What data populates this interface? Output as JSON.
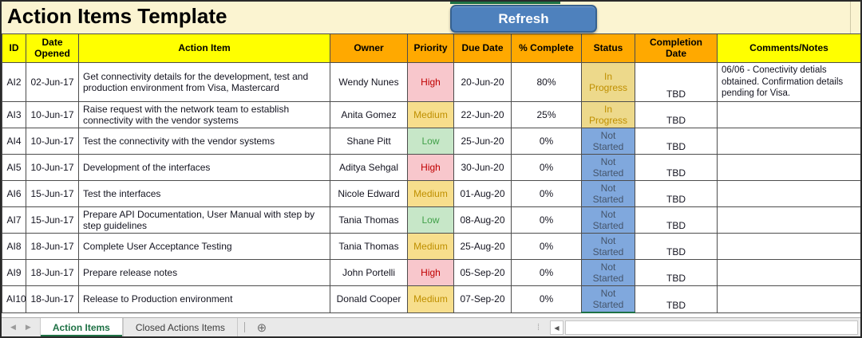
{
  "title": "Action Items Template",
  "refresh_button": "Refresh",
  "table": {
    "columns": [
      "ID",
      "Date Opened",
      "Action Item",
      "Owner",
      "Priority",
      "Due Date",
      "% Complete",
      "Status",
      "Completion Date",
      "Comments/Notes"
    ],
    "rows": [
      {
        "id": "AI2",
        "date_opened": "02-Jun-17",
        "action_item": "Get connectivity details for the development, test and production environment from Visa, Mastercard",
        "owner": "Wendy Nunes",
        "priority": "High",
        "due_date": "20-Jun-20",
        "pct_complete": "80%",
        "status": "In Progress",
        "completion_date": "TBD",
        "comments": "06/06 - Conectivity detials obtained. Confirmation details pending  for Visa."
      },
      {
        "id": "AI3",
        "date_opened": "10-Jun-17",
        "action_item": "Raise request with the network team to establish connectivity with the  vendor systems",
        "owner": "Anita Gomez",
        "priority": "Medium",
        "due_date": "22-Jun-20",
        "pct_complete": "25%",
        "status": "In Progress",
        "completion_date": "TBD",
        "comments": ""
      },
      {
        "id": "AI4",
        "date_opened": "10-Jun-17",
        "action_item": "Test the connectivity with the vendor systems",
        "owner": "Shane Pitt",
        "priority": "Low",
        "due_date": "25-Jun-20",
        "pct_complete": "0%",
        "status": "Not Started",
        "completion_date": "TBD",
        "comments": ""
      },
      {
        "id": "AI5",
        "date_opened": "10-Jun-17",
        "action_item": "Development of the interfaces",
        "owner": "Aditya Sehgal",
        "priority": "High",
        "due_date": "30-Jun-20",
        "pct_complete": "0%",
        "status": "Not Started",
        "completion_date": "TBD",
        "comments": ""
      },
      {
        "id": "AI6",
        "date_opened": "15-Jun-17",
        "action_item": "Test the interfaces",
        "owner": "Nicole Edward",
        "priority": "Medium",
        "due_date": "01-Aug-20",
        "pct_complete": "0%",
        "status": "Not Started",
        "completion_date": "TBD",
        "comments": ""
      },
      {
        "id": "AI7",
        "date_opened": "15-Jun-17",
        "action_item": "Prepare API Documentation, User Manual with step by step guidelines",
        "owner": "Tania Thomas",
        "priority": "Low",
        "due_date": "08-Aug-20",
        "pct_complete": "0%",
        "status": "Not Started",
        "completion_date": "TBD",
        "comments": ""
      },
      {
        "id": "AI8",
        "date_opened": "18-Jun-17",
        "action_item": "Complete User Acceptance Testing",
        "owner": "Tania Thomas",
        "priority": "Medium",
        "due_date": "25-Aug-20",
        "pct_complete": "0%",
        "status": "Not Started",
        "completion_date": "TBD",
        "comments": ""
      },
      {
        "id": "AI9",
        "date_opened": "18-Jun-17",
        "action_item": "Prepare release notes",
        "owner": "John Portelli",
        "priority": "High",
        "due_date": "05-Sep-20",
        "pct_complete": "0%",
        "status": "Not Started",
        "completion_date": "TBD",
        "comments": ""
      },
      {
        "id": "AI10",
        "date_opened": "18-Jun-17",
        "action_item": "Release to Production environment",
        "owner": "Donald Cooper",
        "priority": "Medium",
        "due_date": "07-Sep-20",
        "pct_complete": "0%",
        "status": "Not Started",
        "completion_date": "TBD",
        "comments": ""
      }
    ]
  },
  "sheet_bar": {
    "active_tab": "Action Items",
    "inactive_tab": "Closed Actions Items"
  },
  "icons": {
    "nav_left": "◀",
    "nav_right": "▶",
    "add_sheet": "⊕",
    "drag_handle": "⁞",
    "scroll_left": "◀"
  },
  "colors": {
    "title_strip_bg": "#FBF4D1",
    "header_yellow": "#FFFF00",
    "header_orange": "#FFA900",
    "refresh_button_bg": "#4E81BD",
    "refresh_button_border": "#36618F",
    "active_tab_green": "#1E7145",
    "priority_high_bg": "#F8C7CC",
    "priority_high_text": "#C00000",
    "priority_medium_bg": "#F7DE8C",
    "priority_medium_text": "#BF8F00",
    "priority_low_bg": "#C7E7C8",
    "priority_low_text": "#41A049",
    "status_in_progress_bg": "#EDD98B",
    "status_not_started_bg": "#80A8DD",
    "status_not_started_text": "#44546A"
  }
}
